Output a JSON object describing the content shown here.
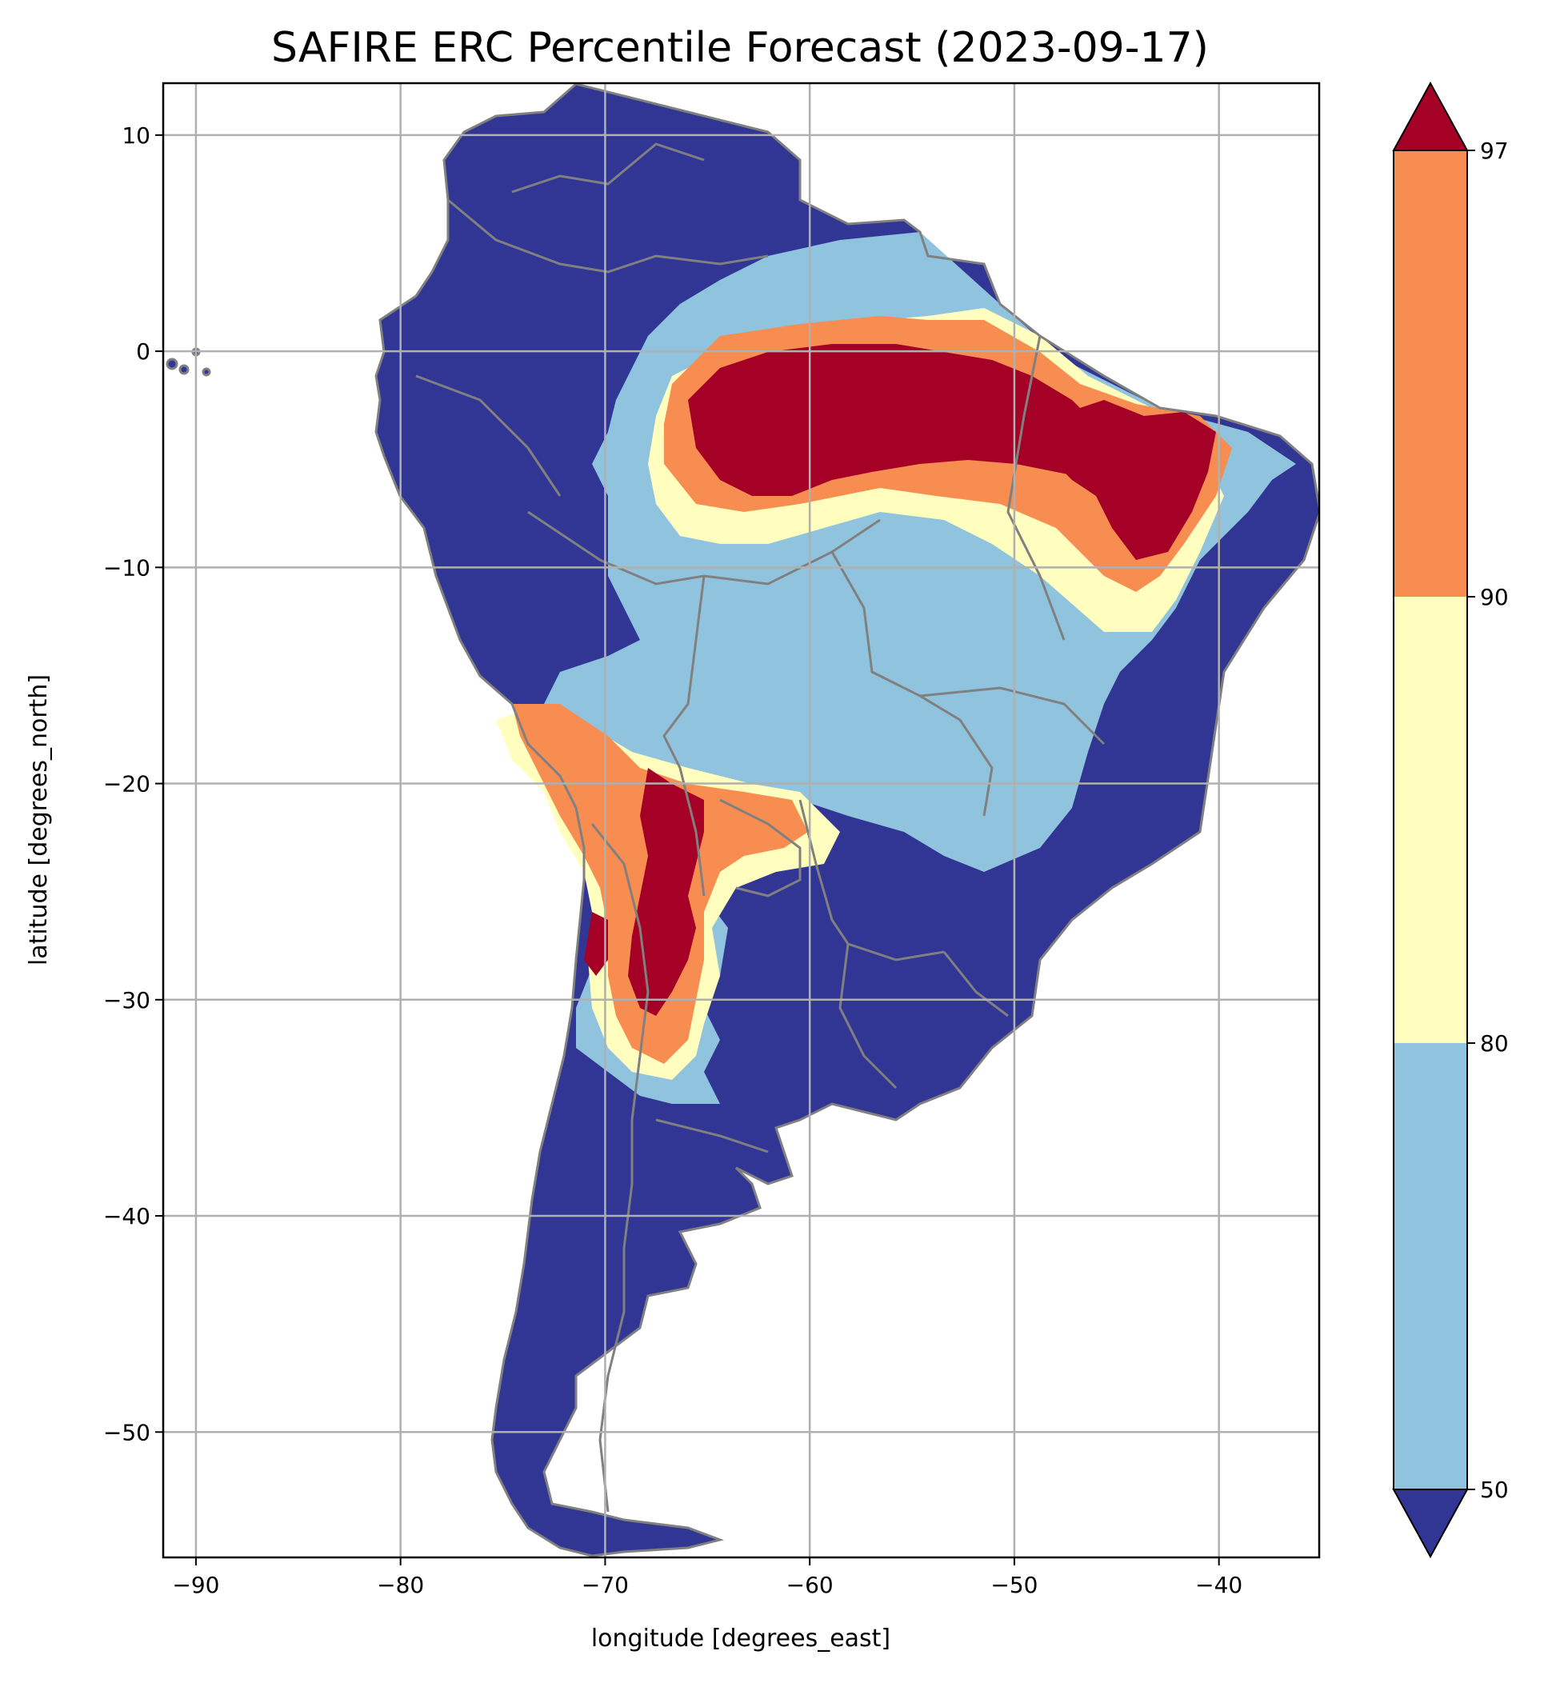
{
  "title": "SAFIRE ERC Percentile Forecast (2023-09-17)",
  "xlabel": "longitude [degrees_east]",
  "ylabel": "latitude [degrees_north]",
  "x_ticks": [
    "−90",
    "−80",
    "−70",
    "−60",
    "−50",
    "−40"
  ],
  "y_ticks": [
    "10",
    "0",
    "−10",
    "−20",
    "−30",
    "−40",
    "−50"
  ],
  "colorbar": {
    "ticks": [
      "97",
      "90",
      "80",
      "50"
    ],
    "colors": {
      "above_97": "#a50026",
      "90_97": "#f88d51",
      "80_90": "#fffebe",
      "50_80": "#90c3dd",
      "below_50": "#313695"
    }
  },
  "map_style": {
    "land_default": "#313695",
    "border_color": "#808080",
    "grid_color": "#b0b0b0",
    "extent": {
      "lon": [
        -91.6,
        -35.1
      ],
      "lat": [
        -55.8,
        12.4
      ]
    },
    "grid": true
  },
  "chart_data": {
    "type": "heatmap",
    "title": "SAFIRE ERC Percentile Forecast (2023-09-17)",
    "xlabel": "longitude [degrees_east]",
    "ylabel": "latitude [degrees_north]",
    "xlim": [
      -91.6,
      -35.1
    ],
    "ylim": [
      -55.8,
      12.4
    ],
    "x_ticks": [
      -90,
      -80,
      -70,
      -60,
      -50,
      -40
    ],
    "y_ticks": [
      10,
      0,
      -10,
      -20,
      -30,
      -40,
      -50
    ],
    "color_levels": [
      50,
      80,
      90,
      97
    ],
    "grid": true
  }
}
